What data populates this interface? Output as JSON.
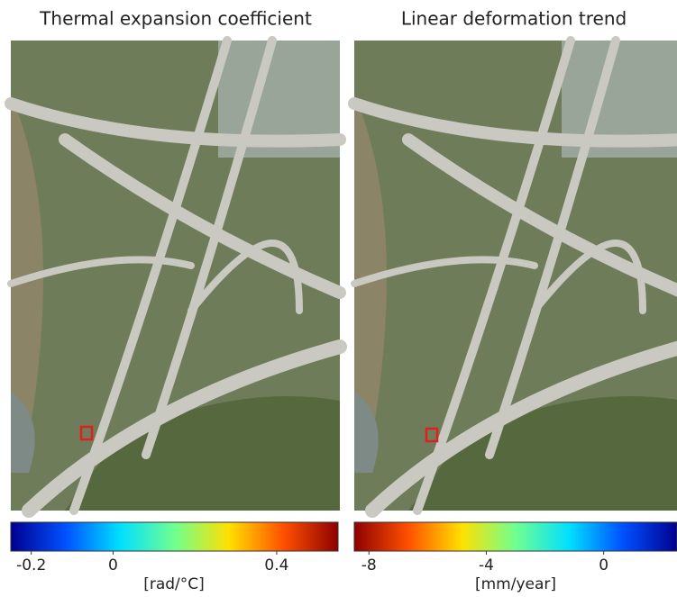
{
  "chart_data": [
    {
      "type": "colorbar",
      "title": "Thermal expansion coefficient",
      "label": "[rad/°C]",
      "xlim": [
        -0.25,
        0.55
      ],
      "xticks": [
        -0.2,
        0,
        0.4
      ],
      "colors": [
        "#00008f",
        "#0050ff",
        "#00dfff",
        "#70ff90",
        "#ffe000",
        "#ff5000",
        "#8f0000"
      ]
    },
    {
      "type": "colorbar",
      "title": "Linear deformation trend",
      "label": "[mm/year]",
      "xlim": [
        -8.5,
        2.5
      ],
      "xticks": [
        -8,
        -4,
        0
      ],
      "colors": [
        "#8f0000",
        "#ff5000",
        "#ffe000",
        "#70ff90",
        "#00dfff",
        "#0050ff",
        "#00008f"
      ]
    }
  ]
}
